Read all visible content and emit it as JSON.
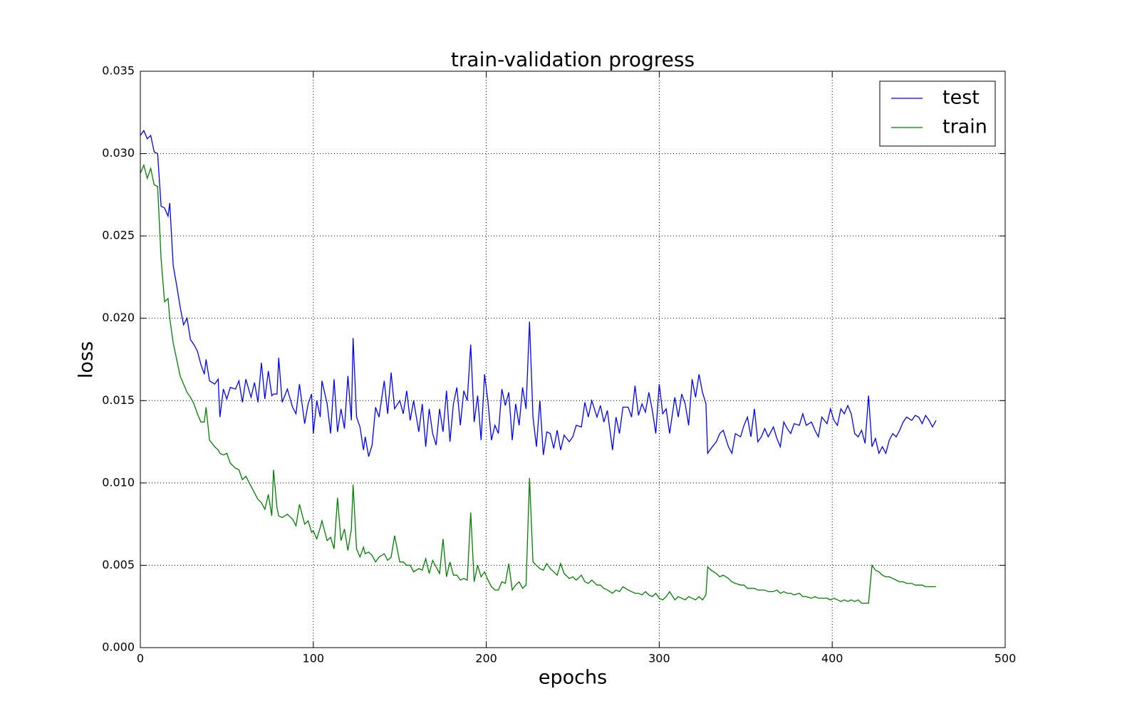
{
  "chart_data": {
    "type": "line",
    "title": "train-validation progress",
    "xlabel": "epochs",
    "ylabel": "loss",
    "x": [
      0,
      2,
      4,
      6,
      8,
      10,
      12,
      14,
      16,
      17,
      19,
      21,
      23,
      25,
      27,
      29,
      31,
      33,
      35,
      37,
      38,
      40,
      43,
      45,
      46,
      48,
      50,
      52,
      55,
      57,
      59,
      61,
      64,
      66,
      68,
      70,
      72,
      74,
      76,
      77,
      79,
      80,
      82,
      85,
      88,
      90,
      92,
      95,
      97,
      99,
      100,
      102,
      104,
      105,
      108,
      110,
      112,
      114,
      116,
      118,
      120,
      122,
      123,
      125,
      127,
      129,
      130,
      132,
      134,
      136,
      138,
      141,
      143,
      145,
      147,
      150,
      152,
      154,
      156,
      158,
      161,
      163,
      165,
      167,
      169,
      171,
      173,
      175,
      177,
      179,
      181,
      183,
      185,
      187,
      189,
      191,
      193,
      195,
      197,
      199,
      201,
      203,
      205,
      207,
      209,
      211,
      213,
      215,
      217,
      219,
      221,
      223,
      225,
      227,
      229,
      231,
      233,
      235,
      237,
      239,
      241,
      243,
      245,
      248,
      250,
      252,
      255,
      257,
      259,
      261,
      264,
      266,
      268,
      270,
      273,
      275,
      277,
      279,
      282,
      284,
      286,
      288,
      290,
      292,
      294,
      296,
      298,
      300,
      302,
      304,
      306,
      309,
      311,
      313,
      315,
      317,
      319,
      321,
      323,
      325,
      327,
      328,
      330,
      333,
      335,
      337,
      340,
      342,
      344,
      347,
      349,
      351,
      353,
      355,
      357,
      359,
      361,
      363,
      366,
      368,
      370,
      372,
      374,
      376,
      378,
      381,
      383,
      385,
      388,
      390,
      392,
      394,
      397,
      399,
      401,
      403,
      405,
      407,
      409,
      411,
      413,
      415,
      417,
      419,
      421,
      423,
      425,
      427,
      429,
      431,
      433,
      435,
      437,
      439,
      441,
      443,
      446,
      448,
      450,
      452,
      454,
      456,
      458,
      460
    ],
    "series": [
      {
        "name": "test",
        "color": "#0000ff",
        "values": [
          0.0311,
          0.0314,
          0.0309,
          0.0311,
          0.0301,
          0.03,
          0.0268,
          0.0267,
          0.0262,
          0.027,
          0.0232,
          0.022,
          0.0207,
          0.0196,
          0.02,
          0.0187,
          0.0184,
          0.018,
          0.0172,
          0.0166,
          0.0175,
          0.0162,
          0.016,
          0.0163,
          0.014,
          0.0157,
          0.0151,
          0.0158,
          0.0157,
          0.0162,
          0.0149,
          0.0163,
          0.0152,
          0.0161,
          0.0149,
          0.0173,
          0.0151,
          0.0168,
          0.0153,
          0.0154,
          0.0154,
          0.0176,
          0.0149,
          0.0157,
          0.0146,
          0.0142,
          0.016,
          0.0136,
          0.0148,
          0.0154,
          0.013,
          0.015,
          0.014,
          0.0162,
          0.0148,
          0.013,
          0.0163,
          0.0131,
          0.0145,
          0.0133,
          0.0165,
          0.0138,
          0.0188,
          0.014,
          0.0134,
          0.012,
          0.0128,
          0.0116,
          0.0123,
          0.0146,
          0.014,
          0.0162,
          0.0142,
          0.0167,
          0.0145,
          0.015,
          0.0142,
          0.0156,
          0.0138,
          0.015,
          0.0131,
          0.0148,
          0.0122,
          0.0145,
          0.013,
          0.0123,
          0.0145,
          0.0131,
          0.0156,
          0.0125,
          0.0148,
          0.0158,
          0.0135,
          0.0156,
          0.015,
          0.0184,
          0.0137,
          0.0153,
          0.0126,
          0.0166,
          0.0149,
          0.0126,
          0.0135,
          0.013,
          0.0157,
          0.0147,
          0.0155,
          0.0126,
          0.0148,
          0.0135,
          0.0158,
          0.0145,
          0.0198,
          0.014,
          0.0122,
          0.015,
          0.0117,
          0.0131,
          0.013,
          0.0121,
          0.0132,
          0.012,
          0.0129,
          0.0125,
          0.0128,
          0.0135,
          0.0134,
          0.0149,
          0.014,
          0.015,
          0.014,
          0.0147,
          0.0137,
          0.0144,
          0.012,
          0.014,
          0.013,
          0.0146,
          0.0146,
          0.014,
          0.0159,
          0.0141,
          0.0148,
          0.0143,
          0.0155,
          0.0144,
          0.013,
          0.016,
          0.0142,
          0.0145,
          0.013,
          0.0152,
          0.014,
          0.0154,
          0.0148,
          0.0135,
          0.0163,
          0.0152,
          0.0166,
          0.0155,
          0.0148,
          0.0118,
          0.0121,
          0.0125,
          0.013,
          0.0132,
          0.0122,
          0.0118,
          0.013,
          0.0128,
          0.0135,
          0.014,
          0.0128,
          0.0145,
          0.0125,
          0.0128,
          0.0133,
          0.0128,
          0.0134,
          0.0127,
          0.0122,
          0.0137,
          0.0133,
          0.013,
          0.0136,
          0.0135,
          0.0142,
          0.0135,
          0.0137,
          0.0132,
          0.0128,
          0.014,
          0.0136,
          0.0145,
          0.0138,
          0.0135,
          0.0145,
          0.0142,
          0.0147,
          0.0142,
          0.013,
          0.0128,
          0.0132,
          0.0124,
          0.0153,
          0.0122,
          0.0127,
          0.0118,
          0.0122,
          0.0118,
          0.0126,
          0.013,
          0.0128,
          0.0132,
          0.0137,
          0.014,
          0.0138,
          0.0141,
          0.014,
          0.0136,
          0.0141,
          0.0138,
          0.0134,
          0.0138
        ]
      },
      {
        "name": "train",
        "color": "#008000",
        "values": [
          0.0288,
          0.0293,
          0.0285,
          0.0291,
          0.0281,
          0.028,
          0.0236,
          0.021,
          0.0212,
          0.02,
          0.0185,
          0.0175,
          0.0165,
          0.016,
          0.0155,
          0.0152,
          0.0148,
          0.0142,
          0.0137,
          0.0137,
          0.0146,
          0.0126,
          0.0122,
          0.012,
          0.0118,
          0.0117,
          0.0118,
          0.0112,
          0.0109,
          0.0108,
          0.0102,
          0.0104,
          0.0098,
          0.0094,
          0.009,
          0.0088,
          0.0084,
          0.0093,
          0.008,
          0.0108,
          0.0085,
          0.008,
          0.0079,
          0.0081,
          0.0078,
          0.0074,
          0.0087,
          0.0075,
          0.0077,
          0.007,
          0.0071,
          0.0066,
          0.0073,
          0.0077,
          0.0065,
          0.0067,
          0.006,
          0.0091,
          0.0065,
          0.0072,
          0.0059,
          0.0072,
          0.0099,
          0.006,
          0.0055,
          0.0061,
          0.0057,
          0.0058,
          0.0056,
          0.0052,
          0.0055,
          0.0057,
          0.0053,
          0.0055,
          0.0068,
          0.0052,
          0.0052,
          0.005,
          0.005,
          0.0046,
          0.0048,
          0.0047,
          0.0054,
          0.0045,
          0.0053,
          0.0049,
          0.0045,
          0.0066,
          0.0043,
          0.0052,
          0.0044,
          0.0044,
          0.0041,
          0.0042,
          0.0041,
          0.0082,
          0.004,
          0.005,
          0.0043,
          0.0046,
          0.0041,
          0.0037,
          0.0035,
          0.0035,
          0.004,
          0.0039,
          0.0051,
          0.0035,
          0.0038,
          0.004,
          0.0036,
          0.0038,
          0.0103,
          0.0052,
          0.005,
          0.0048,
          0.0047,
          0.0051,
          0.0048,
          0.0046,
          0.0044,
          0.0051,
          0.0045,
          0.0042,
          0.0043,
          0.0041,
          0.0044,
          0.004,
          0.0039,
          0.0041,
          0.0038,
          0.0038,
          0.0036,
          0.0035,
          0.0033,
          0.0035,
          0.0034,
          0.0037,
          0.0035,
          0.0034,
          0.0033,
          0.0033,
          0.0032,
          0.0034,
          0.0032,
          0.0031,
          0.0033,
          0.003,
          0.0029,
          0.0031,
          0.0034,
          0.0029,
          0.0031,
          0.003,
          0.0029,
          0.0031,
          0.003,
          0.0029,
          0.0031,
          0.0029,
          0.0032,
          0.0049,
          0.0047,
          0.0045,
          0.0043,
          0.0044,
          0.0042,
          0.004,
          0.0039,
          0.0038,
          0.0038,
          0.0036,
          0.0036,
          0.0036,
          0.0035,
          0.0035,
          0.0035,
          0.0034,
          0.0034,
          0.0035,
          0.0033,
          0.0034,
          0.0033,
          0.0033,
          0.0032,
          0.0033,
          0.0031,
          0.0031,
          0.003,
          0.0031,
          0.003,
          0.003,
          0.003,
          0.0029,
          0.003,
          0.0029,
          0.0028,
          0.0029,
          0.0028,
          0.0029,
          0.0028,
          0.0029,
          0.0027,
          0.0027,
          0.0027,
          0.005,
          0.0047,
          0.0046,
          0.0044,
          0.0043,
          0.0043,
          0.0042,
          0.0041,
          0.004,
          0.004,
          0.0039,
          0.0039,
          0.0038,
          0.0038,
          0.0038,
          0.0037,
          0.0037,
          0.0037,
          0.0037
        ]
      }
    ],
    "xlim": [
      0,
      500
    ],
    "xticks": [
      0,
      100,
      200,
      300,
      400,
      500
    ],
    "ylim": [
      0,
      0.035
    ],
    "yticks": [
      {
        "value": 0,
        "label": "0.000"
      },
      {
        "value": 0.005,
        "label": "0.005"
      },
      {
        "value": 0.01,
        "label": "0.010"
      },
      {
        "value": 0.015,
        "label": "0.015"
      },
      {
        "value": 0.02,
        "label": "0.020"
      },
      {
        "value": 0.025,
        "label": "0.025"
      },
      {
        "value": 0.03,
        "label": "0.030"
      },
      {
        "value": 0.035,
        "label": "0.035"
      }
    ],
    "grid": true,
    "legend": "upper right"
  }
}
